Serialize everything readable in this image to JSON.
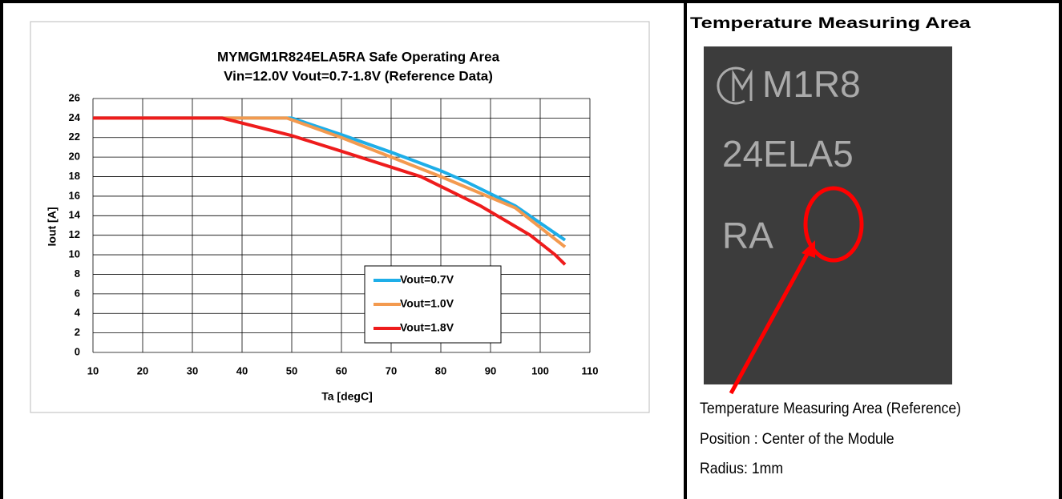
{
  "chart_data": {
    "type": "line",
    "title": "MYMGM1R824ELA5RA  Safe Operating Area",
    "subtitle": "Vin=12.0V Vout=0.7-1.8V  (Reference Data)",
    "x_label": "Ta  [degC]",
    "y_label": "Iout  [A]",
    "xlim": [
      10,
      110
    ],
    "xticks": [
      10,
      20,
      30,
      40,
      50,
      60,
      70,
      80,
      90,
      100,
      110
    ],
    "ylim": [
      0,
      26
    ],
    "yticks": [
      0,
      2,
      4,
      6,
      8,
      10,
      12,
      14,
      16,
      18,
      20,
      22,
      24,
      26
    ],
    "grid": true,
    "series": [
      {
        "name": "Vout=0.7V",
        "color": "#1eaee8",
        "x": [
          10,
          50,
          60,
          70,
          80,
          85,
          95,
          105
        ],
        "values": [
          24,
          24,
          22.3,
          20.5,
          18.6,
          17.5,
          15,
          11.5
        ]
      },
      {
        "name": "Vout=1.0V",
        "color": "#f39a4f",
        "x": [
          10,
          49,
          60,
          70,
          80,
          95,
          105
        ],
        "values": [
          24,
          24,
          22,
          20,
          18,
          14.8,
          10.8
        ]
      },
      {
        "name": "Vout=1.8V",
        "color": "#ee1c1c",
        "x": [
          10,
          36,
          50,
          60,
          76,
          88,
          98,
          103,
          105
        ],
        "values": [
          24,
          24,
          22.2,
          20.6,
          18,
          15,
          12,
          10,
          9
        ]
      }
    ]
  },
  "panel": {
    "title": "Temperature Measuring   Area",
    "marking": [
      "M1R8",
      "24ELA5",
      "RA"
    ],
    "notes": [
      "Temperature Measuring Area (Reference)",
      "Position : Center of the Module",
      "Radius: 1mm"
    ]
  }
}
